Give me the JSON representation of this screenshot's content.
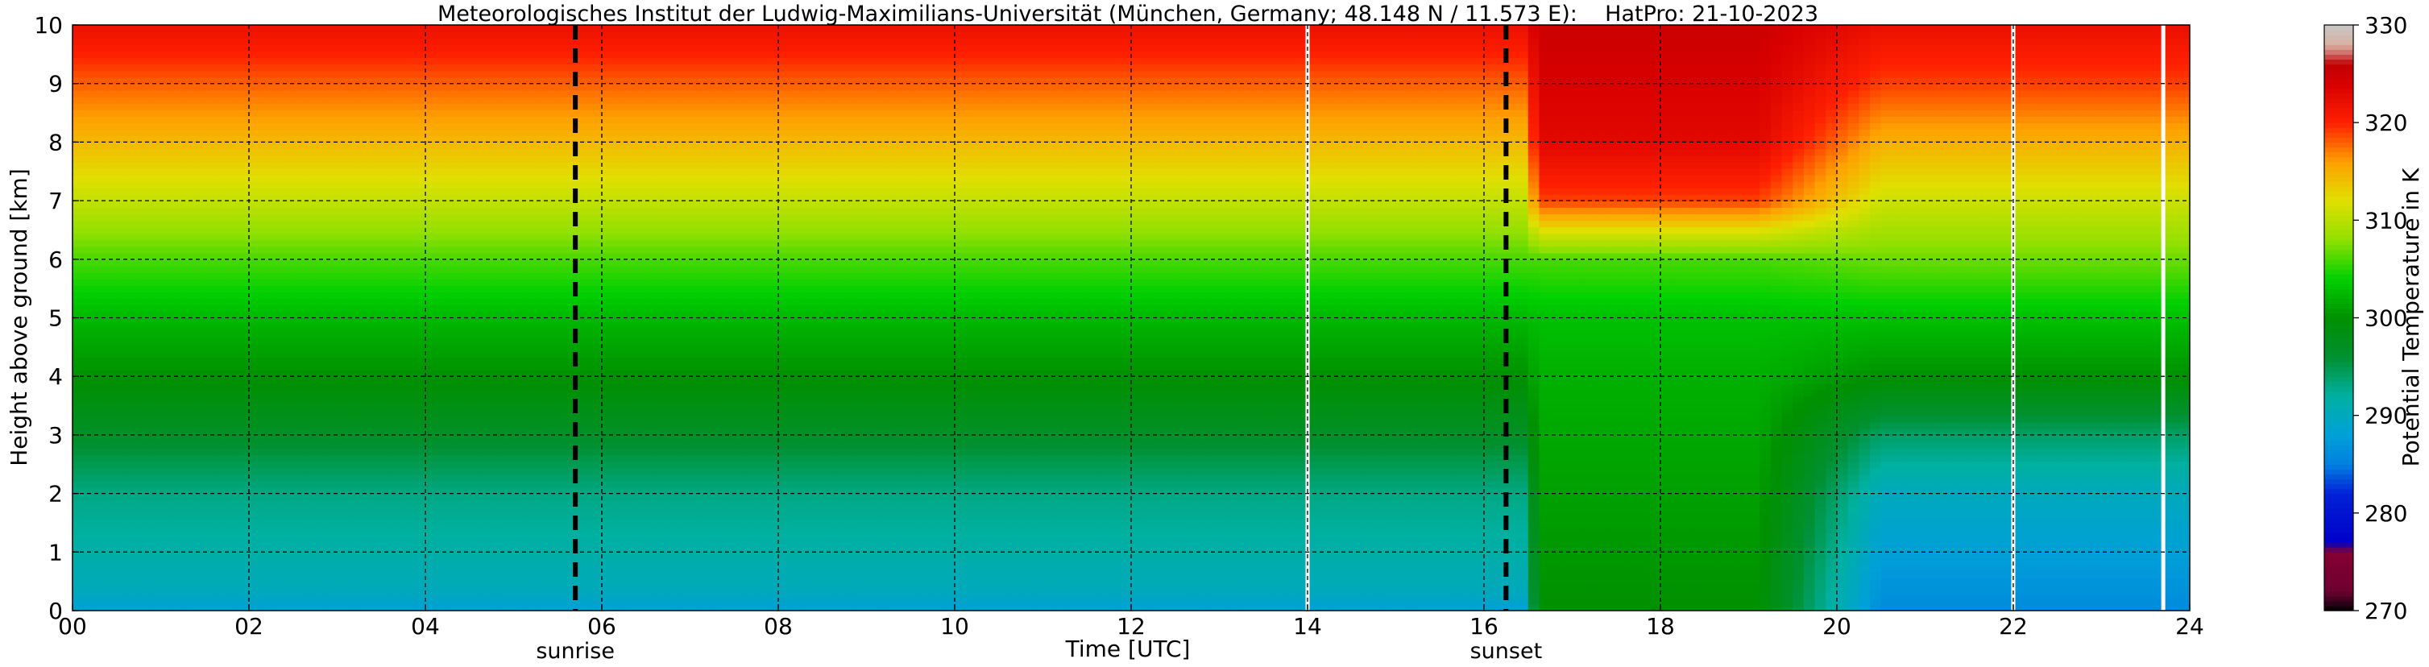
{
  "chart_data": {
    "type": "heatmap",
    "title": "Meteorologisches Institut der Ludwig-Maximilians-Universität (München, Germany; 48.148 N / 11.573 E):    HatPro: 21-10-2023",
    "xlabel": "Time [UTC]",
    "ylabel": "Height above ground [km]",
    "xlim": [
      0,
      24
    ],
    "ylim": [
      0,
      10
    ],
    "x_ticks": [
      0,
      2,
      4,
      6,
      8,
      10,
      12,
      14,
      16,
      18,
      20,
      22,
      24
    ],
    "x_tick_labels": [
      "00",
      "02",
      "04",
      "06",
      "08",
      "10",
      "12",
      "14",
      "16",
      "18",
      "20",
      "22",
      "24"
    ],
    "y_ticks": [
      0,
      1,
      2,
      3,
      4,
      5,
      6,
      7,
      8,
      9,
      10
    ],
    "y_tick_labels": [
      "0",
      "1",
      "2",
      "3",
      "4",
      "5",
      "6",
      "7",
      "8",
      "9",
      "10"
    ],
    "grid": true,
    "colorbar": {
      "label": "Potential Temperature in K",
      "range": [
        270,
        330
      ],
      "tick_values": [
        270,
        280,
        290,
        300,
        310,
        320,
        330
      ],
      "tick_labels": [
        "270",
        "280",
        "290",
        "300",
        "310",
        "320",
        "330"
      ],
      "colormap": [
        {
          "k": 270,
          "color": "#000000"
        },
        {
          "k": 271,
          "color": "#3a0020"
        },
        {
          "k": 272,
          "color": "#6e0030"
        },
        {
          "k": 276,
          "color": "#850033"
        },
        {
          "k": 277,
          "color": "#0000c8"
        },
        {
          "k": 282,
          "color": "#0022d8"
        },
        {
          "k": 285,
          "color": "#0080e0"
        },
        {
          "k": 288,
          "color": "#00a0d8"
        },
        {
          "k": 292,
          "color": "#00b0a0"
        },
        {
          "k": 296,
          "color": "#009030"
        },
        {
          "k": 300,
          "color": "#009000"
        },
        {
          "k": 304,
          "color": "#00d000"
        },
        {
          "k": 308,
          "color": "#90e000"
        },
        {
          "k": 312,
          "color": "#e0e000"
        },
        {
          "k": 316,
          "color": "#ffa000"
        },
        {
          "k": 320,
          "color": "#ff2000"
        },
        {
          "k": 324,
          "color": "#d80000"
        },
        {
          "k": 326,
          "color": "#c00000"
        },
        {
          "k": 327,
          "color": "#d06060"
        },
        {
          "k": 328,
          "color": "#d8b0a0"
        },
        {
          "k": 330,
          "color": "#c8c8c8"
        }
      ]
    },
    "annotations": [
      {
        "label": "sunrise",
        "x": 5.7
      },
      {
        "label": "sunset",
        "x": 16.25
      }
    ],
    "data_gaps": [
      14.0,
      22.0,
      23.7
    ],
    "regimes": [
      {
        "time_range": [
          0,
          16.5
        ],
        "height_km": [
          0,
          0.3,
          1,
          2,
          2.7,
          3.2,
          4,
          5,
          6,
          7,
          8,
          9,
          10
        ],
        "theta_K": [
          288,
          290,
          291.5,
          293,
          295.5,
          297.5,
          300,
          302.5,
          306,
          310.5,
          314.5,
          318,
          322
        ]
      },
      {
        "time_range": [
          16.6,
          19.1
        ],
        "height_km": [
          0,
          1,
          2,
          3,
          4,
          5,
          6,
          6.5,
          7,
          8,
          9,
          10
        ],
        "theta_K": [
          300,
          300.5,
          301,
          301.5,
          302,
          303,
          306,
          312,
          319,
          323,
          324,
          325
        ]
      },
      {
        "time_range": [
          20.5,
          24
        ],
        "height_km": [
          0,
          1,
          2,
          3,
          4,
          5,
          6,
          7,
          8,
          9,
          10
        ],
        "theta_K": [
          286,
          288,
          290,
          294,
          300,
          303,
          307,
          311,
          315,
          319,
          322
        ]
      }
    ]
  }
}
